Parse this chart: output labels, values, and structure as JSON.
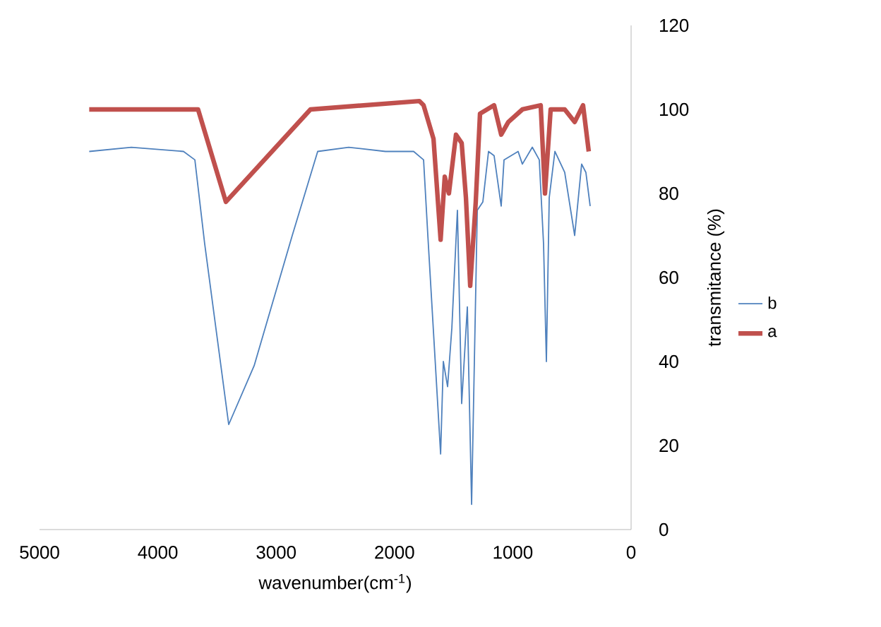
{
  "chart_data": {
    "type": "line",
    "xlabel": "wavenumber(cm$^{-1}$)",
    "ylabel": "transmitance (%)",
    "xlim": [
      5000,
      0
    ],
    "xticks": [
      5000,
      4000,
      3000,
      2000,
      1000,
      0
    ],
    "ylim": [
      0,
      120
    ],
    "yticks": [
      0,
      20,
      40,
      60,
      80,
      100,
      120
    ],
    "legend": "right",
    "grid": false,
    "series": [
      {
        "name": "b",
        "color": "#4f81bd",
        "x": [
          4580,
          4224,
          3783,
          3687,
          3604,
          3401,
          3186,
          2864,
          2649,
          2387,
          2076,
          1838,
          1754,
          1718,
          1610,
          1587,
          1551,
          1515,
          1468,
          1432,
          1384,
          1348,
          1300,
          1253,
          1205,
          1158,
          1098,
          1074,
          955,
          919,
          835,
          776,
          740,
          716,
          692,
          644,
          561,
          477,
          418,
          382,
          346
        ],
        "values": [
          90,
          91,
          90,
          88,
          68,
          25,
          39,
          70,
          90,
          91,
          90,
          90,
          88,
          70,
          18,
          40,
          34,
          48,
          76,
          30,
          53,
          6,
          76,
          78,
          90,
          89,
          77,
          88,
          90,
          87,
          91,
          88,
          68,
          40,
          79,
          90,
          85,
          70,
          87,
          85,
          77
        ]
      },
      {
        "name": "a",
        "color": "#c0504d",
        "x": [
          4580,
          3660,
          3425,
          2710,
          1790,
          1754,
          1670,
          1610,
          1575,
          1540,
          1480,
          1432,
          1396,
          1360,
          1313,
          1277,
          1158,
          1098,
          1038,
          919,
          764,
          728,
          680,
          561,
          477,
          406,
          358
        ],
        "values": [
          100,
          100,
          78,
          100,
          102,
          101,
          93,
          69,
          84,
          80,
          94,
          92,
          79,
          58,
          78,
          99,
          101,
          94,
          97,
          100,
          101,
          80,
          100,
          100,
          97,
          101,
          90
        ]
      }
    ]
  }
}
